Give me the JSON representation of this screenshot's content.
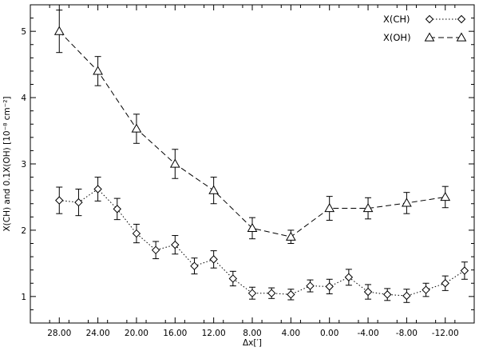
{
  "chart_data": {
    "type": "scatter",
    "title": "",
    "xlabel": "Δx[′]",
    "ylabel": "X(CH) and 0.1X(OH) [10⁻⁸ cm⁻²]",
    "xlim": [
      31,
      -15
    ],
    "ylim": [
      0.6,
      5.4
    ],
    "xticks": [
      28,
      24,
      20,
      16,
      12,
      8,
      4,
      0,
      -4,
      -8,
      -12
    ],
    "xtick_labels": [
      "28.00",
      "24.00",
      "20.00",
      "16.00",
      "12.00",
      "8.00",
      "4.00",
      "0.00",
      "-4.00",
      "-8.00",
      "-12.00"
    ],
    "yticks": [
      1,
      2,
      3,
      4,
      5
    ],
    "ytick_labels": [
      "1",
      "2",
      "3",
      "4",
      "5"
    ],
    "grid": false,
    "legend_position": "top-right",
    "series": [
      {
        "name": "X(CH)",
        "marker": "diamond",
        "line": "dotted",
        "x": [
          28,
          26,
          24,
          22,
          20,
          18,
          16,
          14,
          12,
          10,
          8,
          6,
          4,
          2,
          0,
          -2,
          -4,
          -6,
          -8,
          -10,
          -12,
          -14
        ],
        "y": [
          2.45,
          2.42,
          2.62,
          2.32,
          1.95,
          1.7,
          1.78,
          1.46,
          1.56,
          1.27,
          1.05,
          1.05,
          1.03,
          1.16,
          1.15,
          1.29,
          1.07,
          1.03,
          1.01,
          1.1,
          1.2,
          1.39
        ],
        "err": [
          0.2,
          0.2,
          0.18,
          0.16,
          0.14,
          0.13,
          0.14,
          0.12,
          0.13,
          0.11,
          0.09,
          0.08,
          0.08,
          0.09,
          0.11,
          0.12,
          0.11,
          0.09,
          0.1,
          0.1,
          0.11,
          0.13
        ]
      },
      {
        "name": "X(OH)",
        "marker": "triangle",
        "line": "dashed",
        "x": [
          28,
          24,
          20,
          16,
          12,
          8,
          4,
          0,
          -4,
          -8,
          -12
        ],
        "y": [
          5.0,
          4.4,
          3.53,
          3.0,
          2.6,
          2.03,
          1.9,
          2.33,
          2.33,
          2.41,
          2.5
        ],
        "err": [
          0.32,
          0.22,
          0.22,
          0.22,
          0.2,
          0.16,
          0.1,
          0.18,
          0.16,
          0.16,
          0.16
        ]
      }
    ]
  }
}
